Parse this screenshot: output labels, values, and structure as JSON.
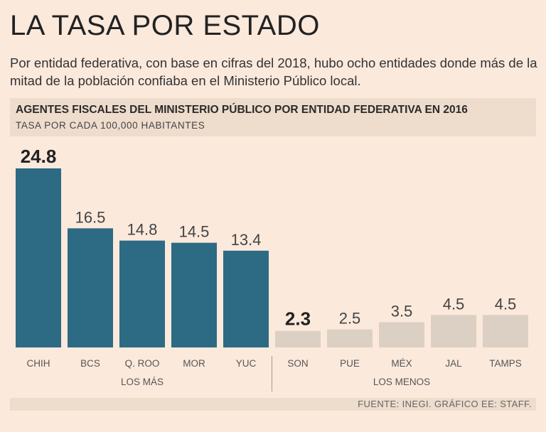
{
  "title": "LA TASA POR ESTADO",
  "description": "Por entidad federativa, con base en cifras del 2018, hubo ocho entidades donde más de la mitad de la población confiaba en el Ministerio Público local.",
  "source": "FUENTE: INEGI. GRÁFICO EE: STAFF.",
  "colors": {
    "top": "#2d6a84",
    "bottom": "#dcd0c4",
    "background": "#fbe9dc",
    "band": "#eedccc"
  },
  "chart_data": {
    "type": "bar",
    "title": "AGENTES FISCALES DEL MINISTERIO PÚBLICO POR ENTIDAD FEDERATIVA EN 2016",
    "subtitle": "TASA POR CADA 100,000 HABITANTES",
    "categories": [
      "CHIH",
      "BCS",
      "Q. ROO",
      "MOR",
      "YUC",
      "SON",
      "PUE",
      "MÉX",
      "JAL",
      "TAMPS"
    ],
    "values": [
      24.8,
      16.5,
      14.8,
      14.5,
      13.4,
      2.3,
      2.5,
      3.5,
      4.5,
      4.5
    ],
    "labels": [
      "24.8",
      "16.5",
      "14.8",
      "14.5",
      "13.4",
      "2.3",
      "2.5",
      "3.5",
      "4.5",
      "4.5"
    ],
    "groups": [
      {
        "name": "LOS MÁS",
        "indices": [
          0,
          1,
          2,
          3,
          4
        ]
      },
      {
        "name": "LOS MENOS",
        "indices": [
          5,
          6,
          7,
          8,
          9
        ]
      }
    ],
    "emphasized": [
      0,
      5
    ],
    "ylim": [
      0,
      24.8
    ],
    "grid": false,
    "legend": "none"
  }
}
